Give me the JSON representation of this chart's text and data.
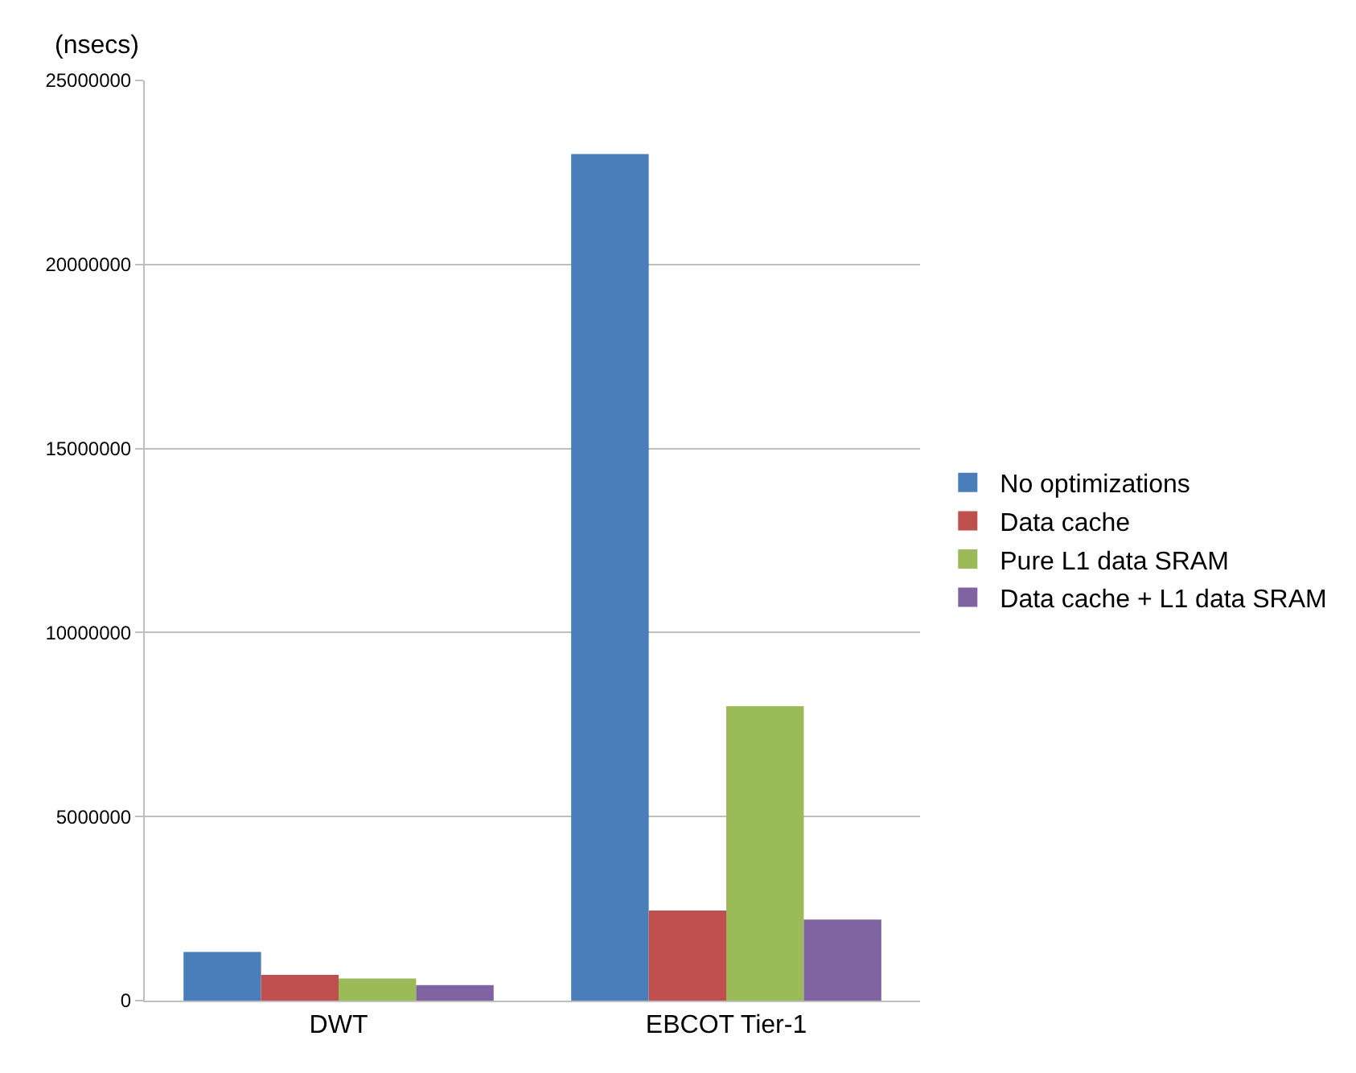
{
  "chart_data": {
    "type": "bar",
    "ylabel": "(nsecs)",
    "categories": [
      "DWT",
      "EBCOT Tier-1"
    ],
    "series": [
      {
        "name": "No optimizations",
        "color": "#4a7ebb",
        "values": [
          1320000,
          23000000
        ]
      },
      {
        "name": "Data cache",
        "color": "#c0504d",
        "values": [
          700000,
          2450000
        ]
      },
      {
        "name": "Pure L1 data SRAM",
        "color": "#9bbb59",
        "values": [
          600000,
          8000000
        ]
      },
      {
        "name": "Data cache + L1 data SRAM",
        "color": "#8064a2",
        "values": [
          420000,
          2200000
        ]
      }
    ],
    "ylim": [
      0,
      25000000
    ],
    "yticks": [
      0,
      5000000,
      10000000,
      15000000,
      20000000,
      25000000
    ],
    "grid": "y",
    "legend": "right"
  }
}
